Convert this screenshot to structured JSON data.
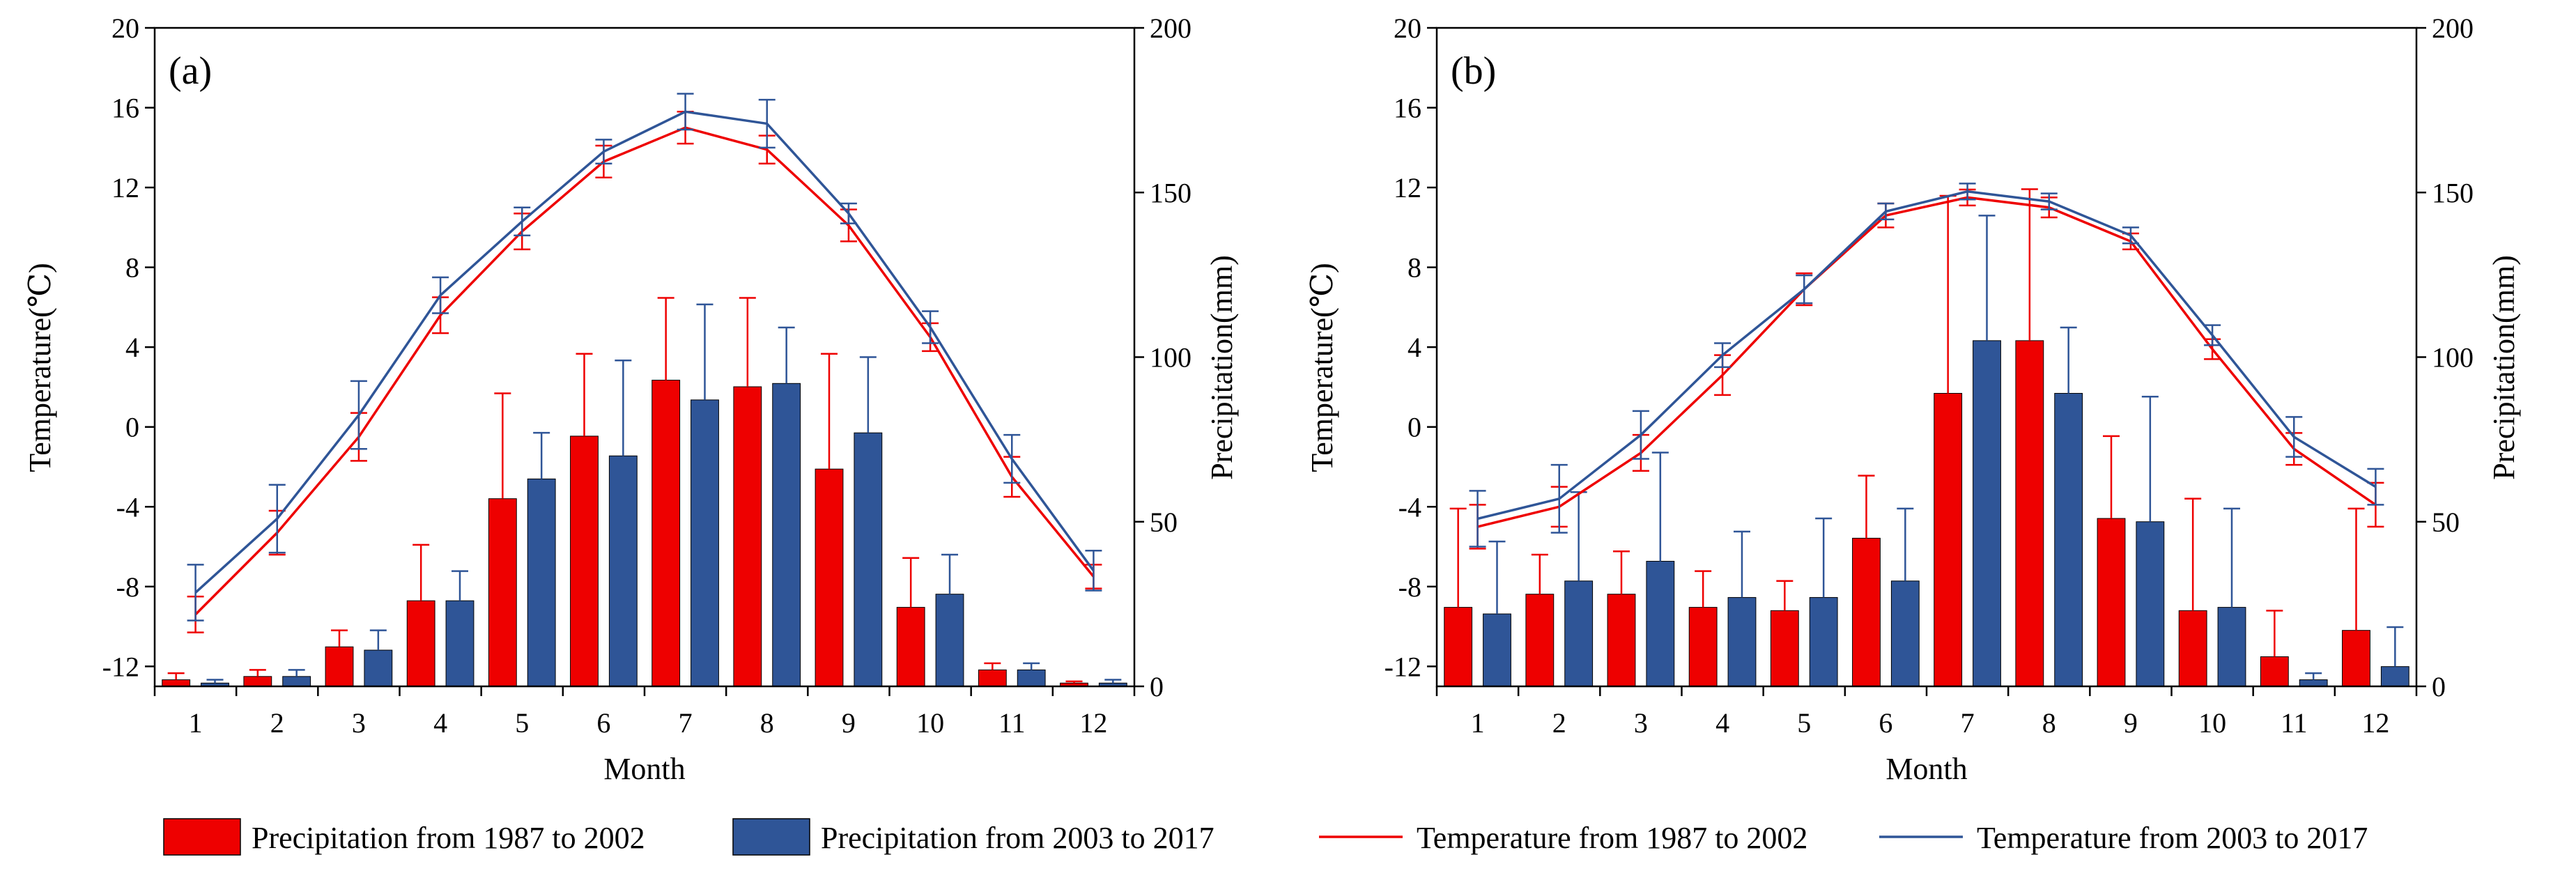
{
  "colors": {
    "red": "#ee0000",
    "blue": "#2f5597",
    "axis": "#000000"
  },
  "chart_data": [
    {
      "type": "bar",
      "panel_label": "(a)",
      "xlabel": "Month",
      "ylabel_left": "Temperature(℃)",
      "ylabel_right": "Precipitation(mm)",
      "ylim_left": [
        -13,
        20
      ],
      "ylim_right": [
        0,
        200
      ],
      "left_ticks": [
        20,
        16,
        12,
        8,
        4,
        0,
        -4,
        -8,
        -12
      ],
      "right_ticks": [
        200,
        150,
        100,
        50,
        0
      ],
      "categories": [
        "1",
        "2",
        "3",
        "4",
        "5",
        "6",
        "7",
        "8",
        "9",
        "10",
        "11",
        "12"
      ],
      "bars": [
        {
          "name": "Precipitation from 1987 to 2002",
          "color": "red",
          "values": [
            2,
            3,
            12,
            26,
            57,
            76,
            93,
            91,
            66,
            24,
            5,
            1
          ],
          "errors": [
            2,
            2,
            5,
            17,
            32,
            25,
            25,
            27,
            35,
            15,
            2,
            0.5
          ]
        },
        {
          "name": "Precipitation from 2003 to 2017",
          "color": "blue",
          "values": [
            1,
            3,
            11,
            26,
            63,
            70,
            87,
            92,
            77,
            28,
            5,
            1
          ],
          "errors": [
            1,
            2,
            6,
            9,
            14,
            29,
            29,
            17,
            23,
            12,
            2,
            1
          ]
        }
      ],
      "lines": [
        {
          "name": "Temperature from 1987 to 2002",
          "color": "red",
          "values": [
            -9.4,
            -5.3,
            -0.5,
            5.6,
            9.8,
            13.3,
            15.0,
            13.9,
            10.1,
            4.5,
            -2.5,
            -7.5
          ],
          "errors": [
            0.9,
            1.1,
            1.2,
            0.9,
            0.9,
            0.8,
            0.8,
            0.7,
            0.8,
            0.7,
            1.0,
            0.6
          ]
        },
        {
          "name": "Temperature from 2003 to 2017",
          "color": "blue",
          "values": [
            -8.3,
            -4.6,
            0.6,
            6.6,
            10.3,
            13.8,
            15.8,
            15.2,
            10.7,
            5.0,
            -1.6,
            -7.2
          ],
          "errors": [
            1.4,
            1.7,
            1.7,
            0.9,
            0.7,
            0.6,
            0.9,
            1.2,
            0.5,
            0.8,
            1.2,
            1.0
          ]
        }
      ]
    },
    {
      "type": "bar",
      "panel_label": "(b)",
      "xlabel": "Month",
      "ylabel_left": "Temperature(℃)",
      "ylabel_right": "Precipitation(mm)",
      "ylim_left": [
        -13,
        20
      ],
      "ylim_right": [
        0,
        200
      ],
      "left_ticks": [
        20,
        16,
        12,
        8,
        4,
        0,
        -4,
        -8,
        -12
      ],
      "right_ticks": [
        200,
        150,
        100,
        50,
        0
      ],
      "categories": [
        "1",
        "2",
        "3",
        "4",
        "5",
        "6",
        "7",
        "8",
        "9",
        "10",
        "11",
        "12"
      ],
      "bars": [
        {
          "name": "Precipitation from 1987 to 2002",
          "color": "red",
          "values": [
            24,
            28,
            28,
            24,
            23,
            45,
            89,
            105,
            51,
            23,
            9,
            17
          ],
          "errors": [
            30,
            12,
            13,
            11,
            9,
            19,
            60,
            46,
            25,
            34,
            14,
            37
          ]
        },
        {
          "name": "Precipitation from 2003 to 2017",
          "color": "blue",
          "values": [
            22,
            32,
            38,
            27,
            27,
            32,
            105,
            89,
            50,
            24,
            2,
            6
          ],
          "errors": [
            22,
            27,
            33,
            20,
            24,
            22,
            38,
            20,
            38,
            30,
            2,
            12
          ]
        }
      ],
      "lines": [
        {
          "name": "Temperature from 1987 to 2002",
          "color": "red",
          "values": [
            -5.0,
            -4.0,
            -1.3,
            2.6,
            6.9,
            10.6,
            11.5,
            11.0,
            9.3,
            3.9,
            -1.1,
            -3.9
          ],
          "errors": [
            1.1,
            1.0,
            0.9,
            1.0,
            0.8,
            0.6,
            0.4,
            0.5,
            0.4,
            0.5,
            0.8,
            1.1
          ]
        },
        {
          "name": "Temperature from 2003 to 2017",
          "color": "blue",
          "values": [
            -4.6,
            -3.6,
            -0.4,
            3.6,
            6.9,
            10.8,
            11.8,
            11.3,
            9.6,
            4.6,
            -0.5,
            -3.0
          ],
          "errors": [
            1.4,
            1.7,
            1.2,
            0.6,
            0.7,
            0.4,
            0.4,
            0.4,
            0.4,
            0.5,
            1.0,
            0.9
          ]
        }
      ]
    }
  ],
  "legend": [
    {
      "kind": "bar",
      "color": "red",
      "label": "Precipitation from 1987 to 2002"
    },
    {
      "kind": "bar",
      "color": "blue",
      "label": "Precipitation from 2003 to 2017"
    },
    {
      "kind": "line",
      "color": "red",
      "label": "Temperature from 1987 to 2002"
    },
    {
      "kind": "line",
      "color": "blue",
      "label": "Temperature from 2003 to 2017"
    }
  ]
}
